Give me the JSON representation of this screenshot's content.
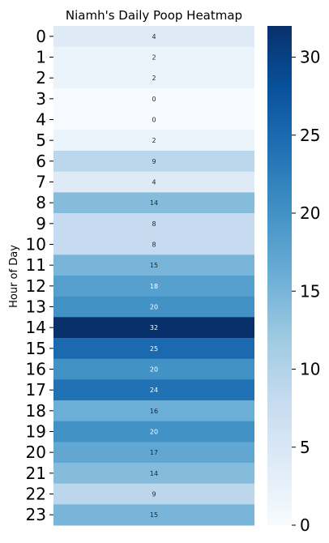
{
  "chart_data": {
    "type": "heatmap",
    "title": "Niamh's Daily Poop Heatmap",
    "xlabel": "",
    "ylabel": "Hour of Day",
    "rows": [
      "0",
      "1",
      "2",
      "3",
      "4",
      "5",
      "6",
      "7",
      "8",
      "9",
      "10",
      "11",
      "12",
      "13",
      "14",
      "15",
      "16",
      "17",
      "18",
      "19",
      "20",
      "21",
      "22",
      "23"
    ],
    "values": [
      4,
      2,
      2,
      0,
      0,
      2,
      9,
      4,
      14,
      8,
      8,
      15,
      18,
      20,
      32,
      25,
      20,
      24,
      16,
      20,
      17,
      14,
      9,
      15
    ],
    "colorbar": {
      "cmap": "Blues",
      "range": [
        0,
        32
      ],
      "ticks": [
        0,
        5,
        10,
        15,
        20,
        25,
        30
      ]
    },
    "annotations": true
  }
}
